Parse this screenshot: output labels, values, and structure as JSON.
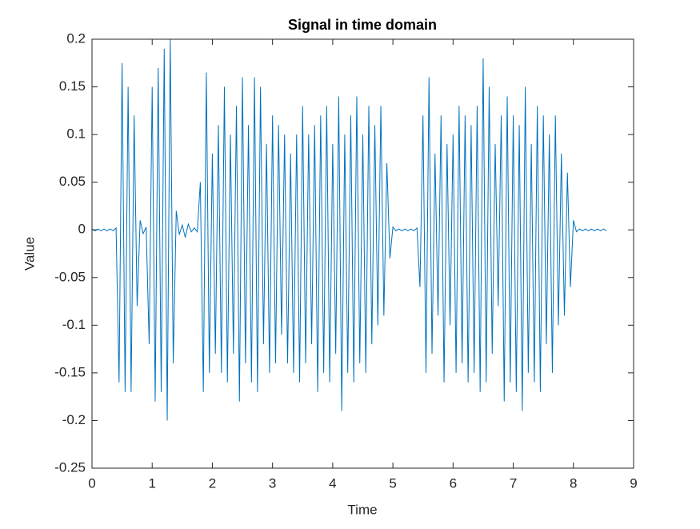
{
  "chart_data": {
    "type": "line",
    "title": "Signal in time domain",
    "x_label": "Time",
    "y_label": "Value",
    "color": "#0072BD",
    "xlim": [
      0,
      9
    ],
    "xticks": [
      0,
      1,
      2,
      3,
      4,
      5,
      6,
      7,
      8,
      9
    ],
    "ylim": [
      -0.25,
      0.2
    ],
    "yticks": [
      -0.25,
      -0.2,
      -0.15,
      -0.1,
      -0.05,
      0,
      0.05,
      0.1,
      0.15,
      0.2
    ],
    "x": [
      0,
      0.05,
      0.1,
      0.15,
      0.2,
      0.25,
      0.3,
      0.35,
      0.4,
      0.45,
      0.5,
      0.55,
      0.6,
      0.65,
      0.7,
      0.75,
      0.8,
      0.85,
      0.9,
      0.95,
      1,
      1.05,
      1.1,
      1.15,
      1.2,
      1.25,
      1.3,
      1.35,
      1.4,
      1.45,
      1.5,
      1.55,
      1.6,
      1.65,
      1.7,
      1.75,
      1.8,
      1.85,
      1.9,
      1.95,
      2,
      2.05,
      2.1,
      2.15,
      2.2,
      2.25,
      2.3,
      2.35,
      2.4,
      2.45,
      2.5,
      2.55,
      2.6,
      2.65,
      2.7,
      2.75,
      2.8,
      2.85,
      2.9,
      2.95,
      3,
      3.05,
      3.1,
      3.15,
      3.2,
      3.25,
      3.3,
      3.35,
      3.4,
      3.45,
      3.5,
      3.55,
      3.6,
      3.65,
      3.7,
      3.75,
      3.8,
      3.85,
      3.9,
      3.95,
      4,
      4.05,
      4.1,
      4.15,
      4.2,
      4.25,
      4.3,
      4.35,
      4.4,
      4.45,
      4.5,
      4.55,
      4.6,
      4.65,
      4.7,
      4.75,
      4.8,
      4.85,
      4.9,
      4.95,
      5,
      5.05,
      5.1,
      5.15,
      5.2,
      5.25,
      5.3,
      5.35,
      5.4,
      5.45,
      5.5,
      5.55,
      5.6,
      5.65,
      5.7,
      5.75,
      5.8,
      5.85,
      5.9,
      5.95,
      6,
      6.05,
      6.1,
      6.15,
      6.2,
      6.25,
      6.3,
      6.35,
      6.4,
      6.45,
      6.5,
      6.55,
      6.6,
      6.65,
      6.7,
      6.75,
      6.8,
      6.85,
      6.9,
      6.95,
      7,
      7.05,
      7.1,
      7.15,
      7.2,
      7.25,
      7.3,
      7.35,
      7.4,
      7.45,
      7.5,
      7.55,
      7.6,
      7.65,
      7.7,
      7.75,
      7.8,
      7.85,
      7.9,
      7.95,
      8,
      8.05,
      8.1,
      8.15,
      8.2,
      8.25,
      8.3,
      8.35,
      8.4,
      8.45,
      8.5,
      8.55
    ],
    "values": [
      0.001,
      -0.001,
      0.001,
      -0.001,
      0.001,
      -0.001,
      0.001,
      -0.001,
      0.002,
      -0.16,
      0.175,
      -0.17,
      0.15,
      -0.17,
      0.12,
      -0.08,
      0.01,
      -0.004,
      0.003,
      -0.12,
      0.15,
      -0.18,
      0.17,
      -0.17,
      0.19,
      -0.2,
      0.2,
      -0.14,
      0.02,
      -0.005,
      0.005,
      -0.008,
      0.006,
      -0.002,
      0.002,
      -0.002,
      0.05,
      -0.17,
      0.165,
      -0.15,
      0.08,
      -0.13,
      0.11,
      -0.15,
      0.15,
      -0.16,
      0.1,
      -0.13,
      0.13,
      -0.18,
      0.16,
      -0.14,
      0.11,
      -0.16,
      0.16,
      -0.17,
      0.15,
      -0.12,
      0.09,
      -0.15,
      0.12,
      -0.14,
      0.11,
      -0.11,
      0.1,
      -0.14,
      0.08,
      -0.15,
      0.1,
      -0.16,
      0.13,
      -0.14,
      0.1,
      -0.12,
      0.11,
      -0.17,
      0.12,
      -0.15,
      0.13,
      -0.16,
      0.09,
      -0.13,
      0.14,
      -0.19,
      0.1,
      -0.15,
      0.12,
      -0.16,
      0.14,
      -0.14,
      0.1,
      -0.15,
      0.13,
      -0.12,
      0.11,
      -0.1,
      0.13,
      -0.09,
      0.07,
      -0.03,
      0.003,
      -0.001,
      0.001,
      -0.001,
      0.001,
      -0.001,
      0.001,
      -0.001,
      0.002,
      -0.06,
      0.12,
      -0.15,
      0.16,
      -0.13,
      0.08,
      -0.09,
      0.12,
      -0.16,
      0.09,
      -0.1,
      0.1,
      -0.15,
      0.13,
      -0.14,
      0.12,
      -0.16,
      0.11,
      -0.15,
      0.13,
      -0.17,
      0.18,
      -0.16,
      0.15,
      -0.13,
      0.09,
      -0.08,
      0.12,
      -0.18,
      0.14,
      -0.16,
      0.12,
      -0.17,
      0.11,
      -0.19,
      0.15,
      -0.15,
      0.09,
      -0.16,
      0.13,
      -0.17,
      0.12,
      -0.12,
      0.1,
      -0.15,
      0.12,
      -0.1,
      0.08,
      -0.09,
      0.06,
      -0.06,
      0.01,
      -0.002,
      0.001,
      -0.001,
      0.001,
      -0.001,
      0.001,
      -0.001,
      0.001,
      -0.001,
      0.001,
      -0.001
    ]
  }
}
